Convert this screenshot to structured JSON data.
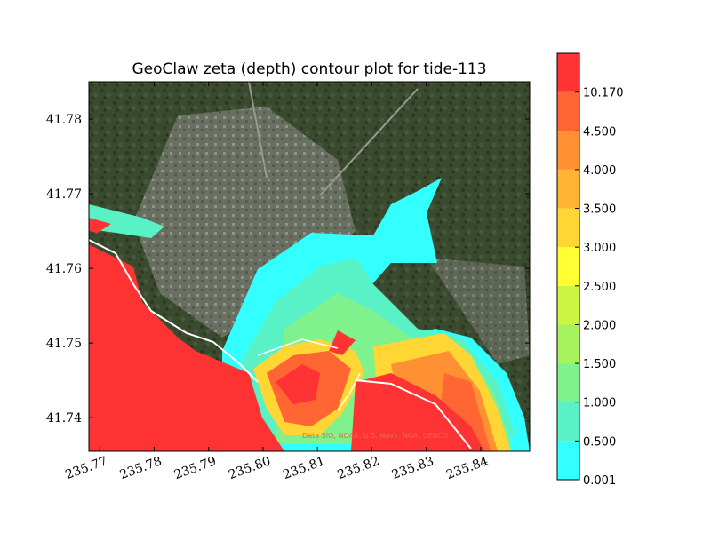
{
  "chart_data": {
    "type": "heatmap",
    "title": "GeoClaw zeta (depth) contour plot for tide-113",
    "xlabel": "",
    "ylabel": "",
    "xlim": [
      235.768,
      235.849
    ],
    "ylim": [
      41.7355,
      41.785
    ],
    "x_ticks": [
      235.77,
      235.78,
      235.79,
      235.8,
      235.81,
      235.82,
      235.83,
      235.84
    ],
    "x_tick_labels": [
      "235.77",
      "235.78",
      "235.79",
      "235.80",
      "235.81",
      "235.82",
      "235.83",
      "235.84"
    ],
    "y_ticks": [
      41.74,
      41.75,
      41.76,
      41.77,
      41.78
    ],
    "y_tick_labels": [
      "41.74",
      "41.75",
      "41.76",
      "41.77",
      "41.78"
    ],
    "colorbar": {
      "levels": [
        "0.001",
        "0.500",
        "1.000",
        "1.500",
        "2.000",
        "2.500",
        "3.000",
        "3.500",
        "4.000",
        "4.500",
        "10.170"
      ],
      "colors": [
        "#33ffff",
        "#59f2c6",
        "#7ff28d",
        "#a6f25f",
        "#ccf542",
        "#ffff33",
        "#ffd633",
        "#ffb433",
        "#ff9133",
        "#ff6633",
        "#ff3333"
      ]
    },
    "background": "satellite imagery",
    "attribution": "Data SIO, NOAA, U.S. Navy, NGA, GEBCO"
  }
}
